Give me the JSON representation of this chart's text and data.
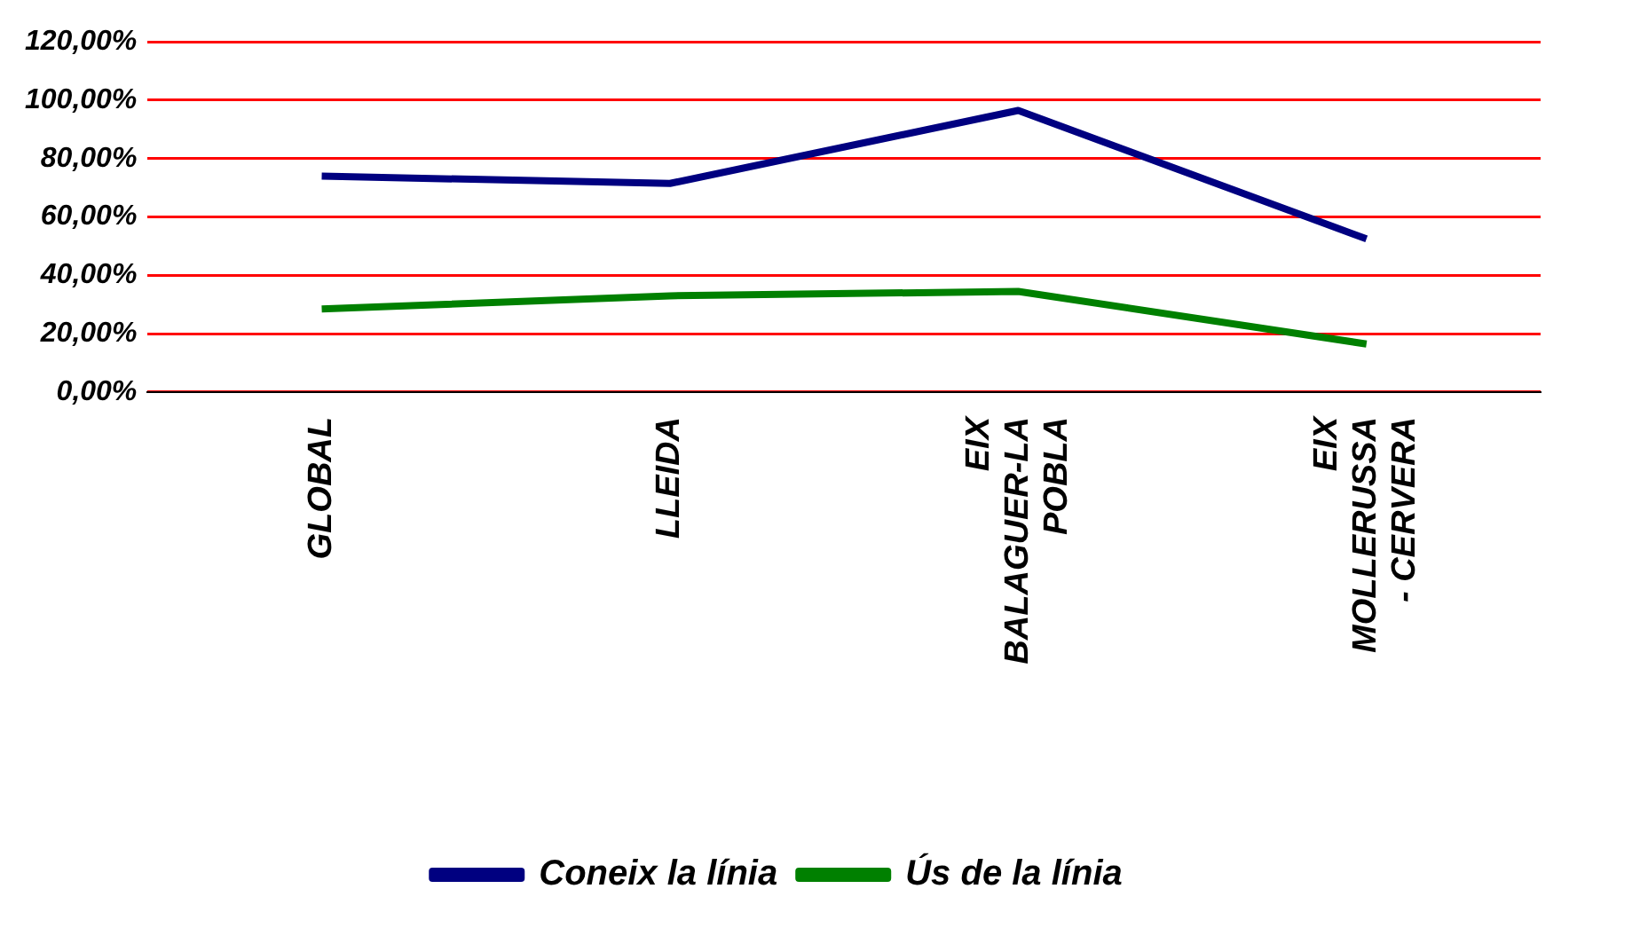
{
  "chart_data": {
    "type": "line",
    "categories": [
      "GLOBAL",
      "LLEIDA",
      "EIX BALAGUER-LA POBLA",
      "EIX MOLLERUSSA - CERVERA"
    ],
    "series": [
      {
        "name": "Coneix la línia",
        "color": "#000080",
        "values": [
          74,
          71.5,
          96.5,
          52.5
        ]
      },
      {
        "name": "Ús de la línia",
        "color": "#008000",
        "values": [
          28.5,
          33,
          34.5,
          16.5
        ]
      }
    ],
    "ylim": [
      0,
      120
    ],
    "yticks": [
      {
        "value": 0,
        "label": "0,00%"
      },
      {
        "value": 20,
        "label": "20,00%"
      },
      {
        "value": 40,
        "label": "40,00%"
      },
      {
        "value": 60,
        "label": "60,00%"
      },
      {
        "value": 80,
        "label": "80,00%"
      },
      {
        "value": 100,
        "label": "100,00%"
      },
      {
        "value": 120,
        "label": "120,00%"
      }
    ],
    "grid": "y",
    "legend": "bottom",
    "marker": "none",
    "line_style": "solid"
  }
}
